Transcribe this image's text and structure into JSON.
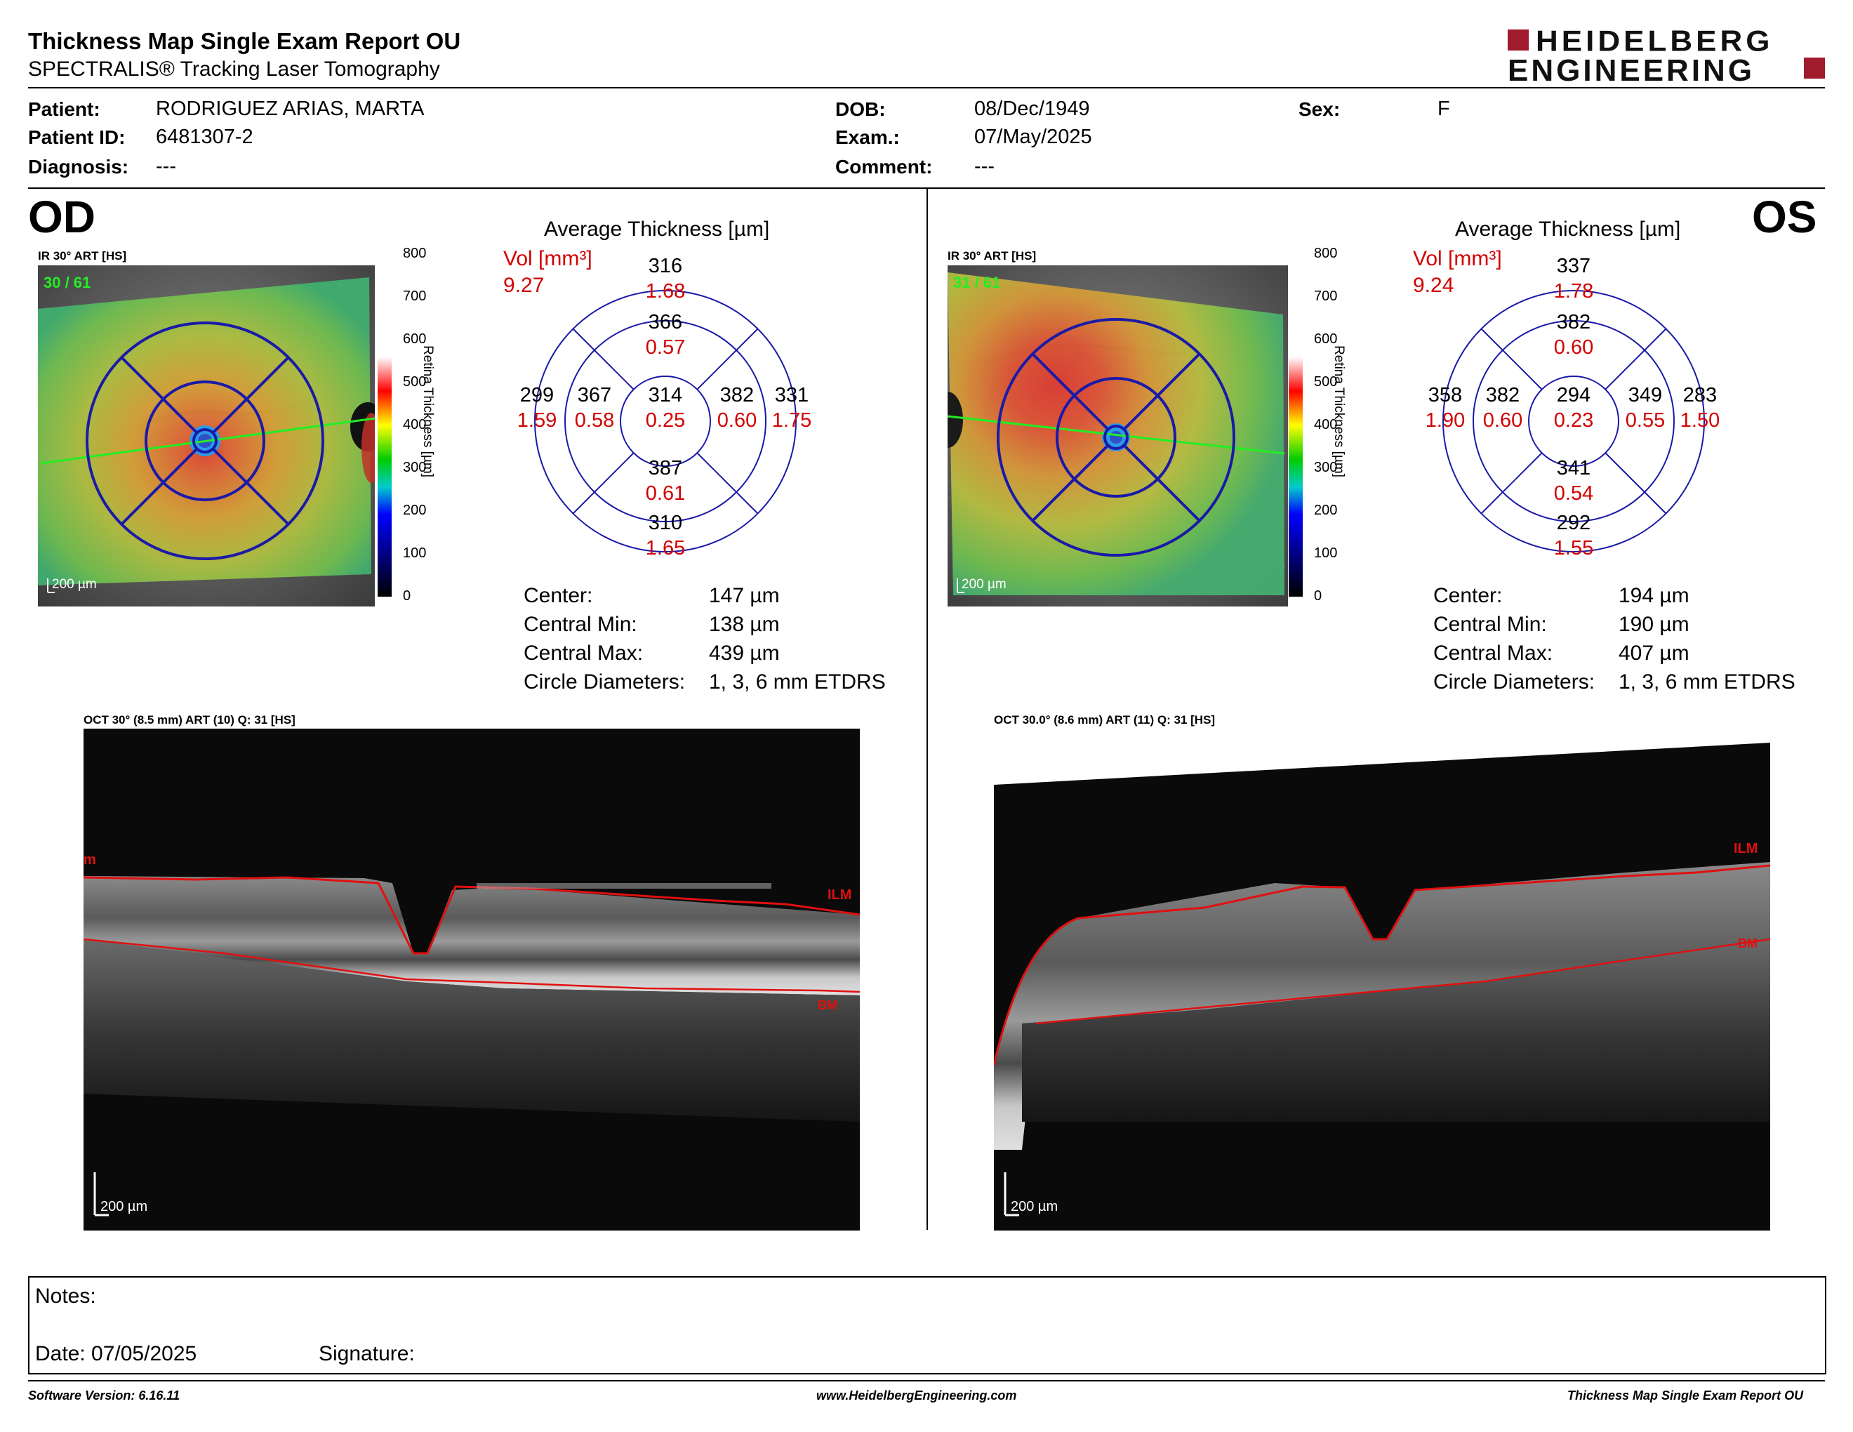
{
  "header": {
    "title": "Thickness Map Single Exam Report OU",
    "subtitle": "SPECTRALIS® Tracking Laser Tomography",
    "logo_line1": "HEIDELBERG",
    "logo_line2": "ENGINEERING",
    "brand_color": "#a01c2c"
  },
  "patient": {
    "patient_label": "Patient:",
    "patient_value": "RODRIGUEZ ARIAS, MARTA",
    "id_label": "Patient ID:",
    "id_value": "6481307-2",
    "diagnosis_label": "Diagnosis:",
    "diagnosis_value": "---",
    "dob_label": "DOB:",
    "dob_value": "08/Dec/1949",
    "exam_label": "Exam.:",
    "exam_value": "07/May/2025",
    "comment_label": "Comment:",
    "comment_value": "---",
    "sex_label": "Sex:",
    "sex_value": "F"
  },
  "scale_ticks": [
    "800",
    "700",
    "600",
    "500",
    "400",
    "300",
    "200",
    "100",
    "0"
  ],
  "scale_title": "Retina Thickness [µm]",
  "od": {
    "eye": "OD",
    "ir_label": "IR 30° ART [HS]",
    "frames": "30 / 61",
    "scalebar": "200 µm",
    "avg_title": "Average Thickness [µm]",
    "vol_label": "Vol [mm³]",
    "vol_value": "9.27",
    "etdrs": {
      "center_t": "314",
      "center_v": "0.25",
      "inner_sup_t": "366",
      "inner_sup_v": "0.57",
      "inner_inf_t": "387",
      "inner_inf_v": "0.61",
      "inner_left_t": "367",
      "inner_left_v": "0.58",
      "inner_right_t": "382",
      "inner_right_v": "0.60",
      "outer_sup_t": "316",
      "outer_sup_v": "1.68",
      "outer_inf_t": "310",
      "outer_inf_v": "1.65",
      "outer_left_t": "299",
      "outer_left_v": "1.59",
      "outer_right_t": "331",
      "outer_right_v": "1.75"
    },
    "stats": {
      "center_label": "Center:",
      "center_value": "147 µm",
      "min_label": "Central Min:",
      "min_value": "138 µm",
      "max_label": "Central Max:",
      "max_value": "439 µm",
      "diam_label": "Circle Diameters:",
      "diam_value": "1, 3, 6 mm ETDRS"
    },
    "oct_label": "OCT 30° (8.5 mm) ART (10) Q: 31 [HS]",
    "oct_scalebar": "200 µm",
    "ilm_label": "ILM",
    "bm_label": "BM",
    "ilm_edge_label": "m"
  },
  "os": {
    "eye": "OS",
    "ir_label": "IR 30° ART [HS]",
    "frames": "31 / 61",
    "scalebar": "200 µm",
    "avg_title": "Average Thickness [µm]",
    "vol_label": "Vol [mm³]",
    "vol_value": "9.24",
    "etdrs": {
      "center_t": "294",
      "center_v": "0.23",
      "inner_sup_t": "382",
      "inner_sup_v": "0.60",
      "inner_inf_t": "341",
      "inner_inf_v": "0.54",
      "inner_left_t": "382",
      "inner_left_v": "0.60",
      "inner_right_t": "349",
      "inner_right_v": "0.55",
      "outer_sup_t": "337",
      "outer_sup_v": "1.78",
      "outer_inf_t": "292",
      "outer_inf_v": "1.55",
      "outer_left_t": "358",
      "outer_left_v": "1.90",
      "outer_right_t": "283",
      "outer_right_v": "1.50"
    },
    "stats": {
      "center_label": "Center:",
      "center_value": "194 µm",
      "min_label": "Central Min:",
      "min_value": "190 µm",
      "max_label": "Central Max:",
      "max_value": "407 µm",
      "diam_label": "Circle Diameters:",
      "diam_value": "1, 3, 6 mm ETDRS"
    },
    "oct_label": "OCT 30.0° (8.6 mm) ART (11) Q: 31 [HS]",
    "oct_scalebar": "200 µm",
    "ilm_label": "ILM",
    "bm_label": "BM"
  },
  "notes": {
    "notes_label": "Notes:",
    "date_label": "Date: 07/05/2025",
    "signature_label": "Signature:"
  },
  "footer": {
    "software": "Software Version: 6.16.11",
    "website": "www.HeidelbergEngineering.com",
    "report_name": "Thickness Map Single Exam Report OU"
  },
  "colors": {
    "etdrs_line": "#1a1aa8",
    "value_red": "#d40000",
    "ilm_line": "#e01010",
    "fixation_line": "#22ee22"
  }
}
